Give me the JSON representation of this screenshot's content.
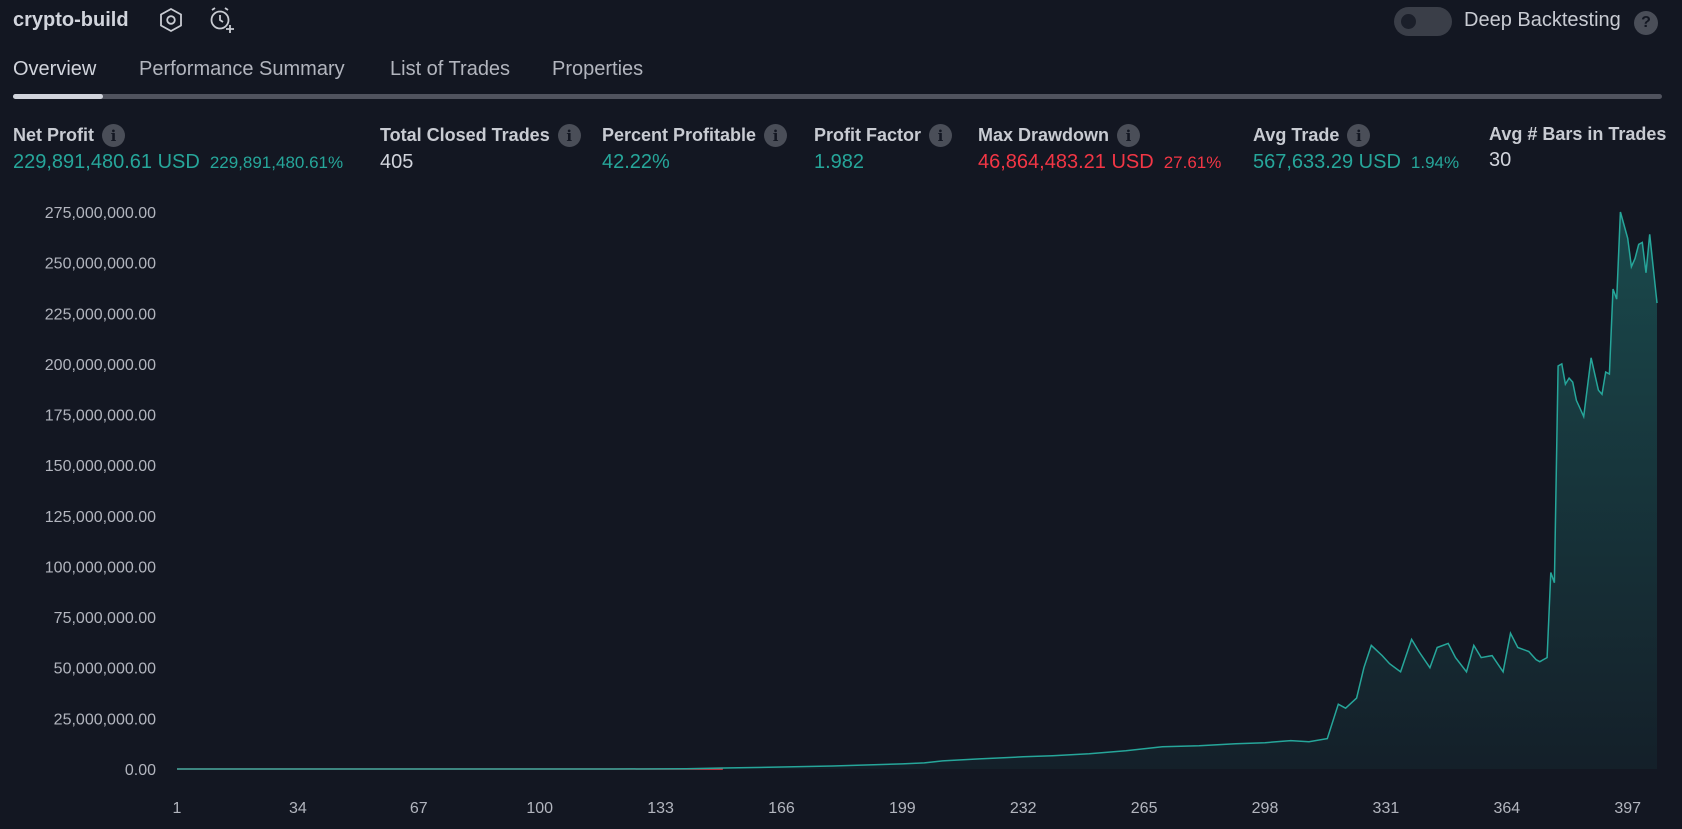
{
  "app": {
    "title": "crypto-build",
    "settings_icon": "settings-hexagon-icon",
    "alert_icon": "add-alert-clock-icon",
    "deep_backtesting_label": "Deep Backtesting",
    "deep_backtesting_on": false,
    "help_icon": "question-circle-icon"
  },
  "tabs": [
    {
      "label": "Overview",
      "active": true
    },
    {
      "label": "Performance Summary",
      "active": false
    },
    {
      "label": "List of Trades",
      "active": false
    },
    {
      "label": "Properties",
      "active": false
    }
  ],
  "metrics": [
    {
      "label": "Net Profit",
      "value": "229,891,480.61 USD",
      "sub": "229,891,480.61%",
      "color": "#26a69a"
    },
    {
      "label": "Total Closed Trades",
      "value": "405",
      "sub": "",
      "color": "#d1d4dc"
    },
    {
      "label": "Percent Profitable",
      "value": "42.22%",
      "sub": "",
      "color": "#26a69a"
    },
    {
      "label": "Profit Factor",
      "value": "1.982",
      "sub": "",
      "color": "#26a69a"
    },
    {
      "label": "Max Drawdown",
      "value": "46,864,483.21 USD",
      "sub": "27.61%",
      "color": "#f23645"
    },
    {
      "label": "Avg Trade",
      "value": "567,633.29 USD",
      "sub": "1.94%",
      "color": "#26a69a"
    },
    {
      "label": "Avg # Bars in Trades",
      "value": "30",
      "sub": "",
      "color": "#d1d4dc"
    }
  ],
  "colors": {
    "background": "#131722",
    "profit_line": "#26a69a",
    "loss_line": "#f23645",
    "text": "#d1d4dc"
  },
  "chart_data": {
    "type": "area",
    "title": "",
    "xlabel": "",
    "ylabel": "",
    "ylim": [
      0,
      275000000
    ],
    "xlim": [
      1,
      405
    ],
    "y_ticks": [
      "0.00",
      "25,000,000.00",
      "50,000,000.00",
      "75,000,000.00",
      "100,000,000.00",
      "125,000,000.00",
      "150,000,000.00",
      "175,000,000.00",
      "200,000,000.00",
      "225,000,000.00",
      "250,000,000.00",
      "275,000,000.00"
    ],
    "x_ticks": [
      "1",
      "34",
      "67",
      "100",
      "133",
      "166",
      "199",
      "232",
      "265",
      "298",
      "331",
      "364",
      "397"
    ],
    "grid": false,
    "series": [
      {
        "x": [
          1,
          40,
          80,
          120,
          140,
          150,
          166,
          180,
          199,
          205,
          210,
          220,
          232,
          240,
          250,
          260,
          265,
          270,
          280,
          290,
          298,
          305,
          310,
          315,
          318,
          320,
          323,
          325,
          327,
          330,
          332,
          335,
          338,
          340,
          343,
          345,
          348,
          350,
          353,
          355,
          357,
          360,
          363,
          365,
          367,
          370,
          372,
          373,
          374,
          375,
          376,
          377,
          378,
          379,
          380,
          381,
          382,
          383,
          384,
          385,
          387,
          389,
          390,
          391,
          392,
          393,
          394,
          395,
          397,
          398,
          399,
          400,
          401,
          402,
          403,
          405
        ],
        "y": [
          0,
          0,
          0,
          0,
          100000,
          500000,
          1000000,
          1500000,
          2500000,
          3000000,
          4000000,
          5000000,
          6000000,
          6500000,
          7500000,
          9000000,
          10000000,
          11000000,
          11500000,
          12500000,
          13000000,
          14000000,
          13500000,
          15000000,
          32000000,
          30000000,
          35000000,
          50000000,
          61000000,
          56000000,
          52000000,
          48000000,
          64000000,
          58000000,
          50000000,
          60000000,
          62000000,
          55000000,
          48000000,
          61000000,
          55000000,
          56000000,
          48000000,
          67000000,
          60000000,
          58000000,
          54000000,
          53000000,
          54000000,
          55000000,
          97000000,
          92000000,
          199000000,
          200000000,
          190000000,
          193000000,
          191000000,
          182000000,
          178000000,
          174000000,
          203000000,
          187000000,
          185000000,
          196000000,
          195000000,
          237000000,
          232000000,
          275000000,
          262000000,
          248000000,
          252000000,
          259000000,
          260000000,
          245000000,
          264000000,
          230000000
        ]
      }
    ]
  }
}
